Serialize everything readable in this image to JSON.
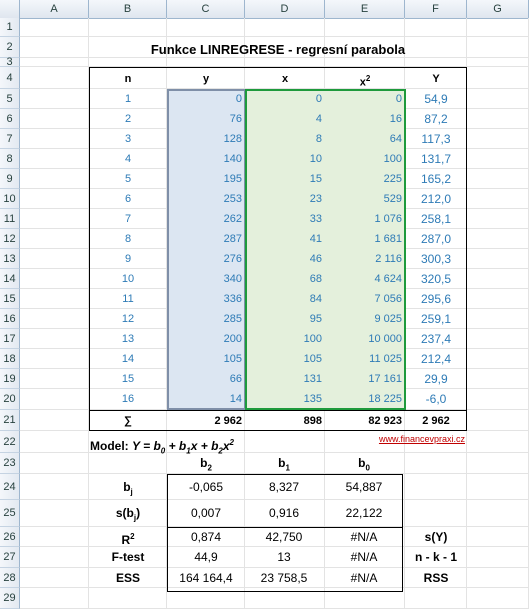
{
  "columns": [
    "A",
    "B",
    "C",
    "D",
    "E",
    "F",
    "G"
  ],
  "rows": [
    "1",
    "2",
    "3",
    "4",
    "5",
    "6",
    "7",
    "8",
    "9",
    "10",
    "11",
    "12",
    "13",
    "14",
    "15",
    "16",
    "17",
    "18",
    "19",
    "20",
    "21",
    "22",
    "23",
    "24",
    "25",
    "26",
    "27",
    "28",
    "29"
  ],
  "title": "Funkce LINREGRESE - regresní parabola",
  "table_headers": {
    "n": "n",
    "y": "y",
    "x": "x",
    "x2": "x",
    "x2_sup": "2",
    "Y": "Y"
  },
  "data_rows": [
    {
      "n": "1",
      "y": "0",
      "x": "0",
      "x2": "0",
      "Y": "54,9"
    },
    {
      "n": "2",
      "y": "76",
      "x": "4",
      "x2": "16",
      "Y": "87,2"
    },
    {
      "n": "3",
      "y": "128",
      "x": "8",
      "x2": "64",
      "Y": "117,3"
    },
    {
      "n": "4",
      "y": "140",
      "x": "10",
      "x2": "100",
      "Y": "131,7"
    },
    {
      "n": "5",
      "y": "195",
      "x": "15",
      "x2": "225",
      "Y": "165,2"
    },
    {
      "n": "6",
      "y": "253",
      "x": "23",
      "x2": "529",
      "Y": "212,0"
    },
    {
      "n": "7",
      "y": "262",
      "x": "33",
      "x2": "1 076",
      "Y": "258,1"
    },
    {
      "n": "8",
      "y": "287",
      "x": "41",
      "x2": "1 681",
      "Y": "287,0"
    },
    {
      "n": "9",
      "y": "276",
      "x": "46",
      "x2": "2 116",
      "Y": "300,3"
    },
    {
      "n": "10",
      "y": "340",
      "x": "68",
      "x2": "4 624",
      "Y": "320,5"
    },
    {
      "n": "11",
      "y": "336",
      "x": "84",
      "x2": "7 056",
      "Y": "295,6"
    },
    {
      "n": "12",
      "y": "285",
      "x": "95",
      "x2": "9 025",
      "Y": "259,1"
    },
    {
      "n": "13",
      "y": "200",
      "x": "100",
      "x2": "10 000",
      "Y": "237,4"
    },
    {
      "n": "14",
      "y": "105",
      "x": "105",
      "x2": "11 025",
      "Y": "212,4"
    },
    {
      "n": "15",
      "y": "66",
      "x": "131",
      "x2": "17 161",
      "Y": "29,9"
    },
    {
      "n": "16",
      "y": "14",
      "x": "135",
      "x2": "18 225",
      "Y": "-6,0"
    }
  ],
  "sum_row": {
    "label": "∑",
    "y": "2 962",
    "x": "898",
    "x2": "82 923",
    "Y": "2 962"
  },
  "model": {
    "prefix": "Model: ",
    "eq": "Y = b",
    "s0": "0",
    "p1": " + b",
    "s1": "1",
    "p2": "x + b",
    "s2": "2",
    "p3": "x",
    "sup": "2"
  },
  "link": "www.financevpraxi.cz",
  "coef_headers": [
    {
      "b": "b",
      "sub": "2"
    },
    {
      "b": "b",
      "sub": "1"
    },
    {
      "b": "b",
      "sub": "0"
    }
  ],
  "stats": {
    "bj": {
      "label": "b",
      "sub": "j",
      "v": [
        "-0,065",
        "8,327",
        "54,887"
      ]
    },
    "sbj": {
      "label": "s(b",
      "sub": "j",
      "tail": ")",
      "v": [
        "0,007",
        "0,916",
        "22,122"
      ]
    },
    "r2": {
      "label": "R",
      "sup": "2",
      "v": [
        "0,874",
        "42,750",
        "#N/A"
      ],
      "right": "s(Y)"
    },
    "ftest": {
      "label": "F-test",
      "v": [
        "44,9",
        "13",
        "#N/A"
      ],
      "right": "n - k - 1"
    },
    "ess": {
      "label": "ESS",
      "v": [
        "164 164,4",
        "23 758,5",
        "#N/A"
      ],
      "right": "RSS"
    }
  }
}
